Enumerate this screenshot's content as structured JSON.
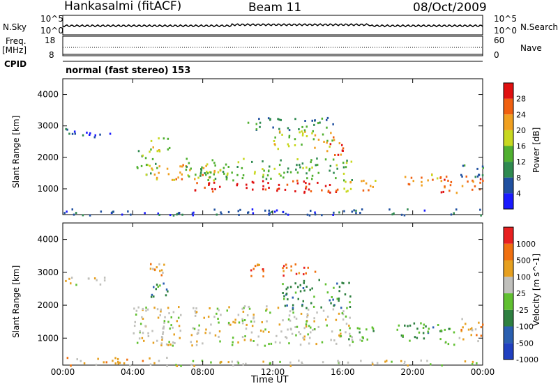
{
  "header": {
    "station": "Hankasalmi (fitACF)",
    "beam": "Beam 11",
    "date": "08/Oct/2009"
  },
  "top_panels": {
    "nsky_label": "N.Sky",
    "nsearch_label": "N.Search",
    "nsky_ticks": [
      "10^5",
      "10^0"
    ],
    "nsearch_ticks": [
      "10^5",
      "10^0"
    ],
    "freq_label_top": "Freq.",
    "freq_label_unit": "[MHz]",
    "freq_ticks": [
      "18",
      "8"
    ],
    "nave_label": "Nave",
    "nave_ticks": [
      "60",
      "0"
    ],
    "cpid_label": "CPID",
    "cpid_text": "normal (fast stereo) 153"
  },
  "colors": {
    "power_scale": [
      "#1a1aff",
      "#2050a0",
      "#2f8a50",
      "#50b030",
      "#c8d820",
      "#f0a020",
      "#f06010",
      "#e01010"
    ],
    "velocity_scale": [
      "#2040c0",
      "#2a5fb0",
      "#2e8040",
      "#60c030",
      "#c0c0bc",
      "#e6a020",
      "#f07010",
      "#e82020"
    ]
  },
  "chart_data": [
    {
      "type": "heatmap",
      "panel": "power",
      "ylabel": "Slant Range [km]",
      "ylim": [
        180,
        4500
      ],
      "yticks": [
        "4000",
        "3000",
        "2000",
        "1000"
      ],
      "xlim": [
        0,
        24
      ],
      "colorbar_label": "Power [dB]",
      "colorbar_ticks": [
        "28",
        "24",
        "20",
        "16",
        "12",
        "8",
        "4"
      ],
      "regions": [
        {
          "t0": 0.0,
          "t1": 2.7,
          "r0": 2650,
          "r1": 2950,
          "level": 1
        },
        {
          "t0": 4.2,
          "t1": 5.4,
          "r0": 1400,
          "r1": 2300,
          "level": 3
        },
        {
          "t0": 4.8,
          "t1": 6.2,
          "r0": 2200,
          "r1": 2700,
          "level": 4
        },
        {
          "t0": 5.0,
          "t1": 9.0,
          "r0": 1300,
          "r1": 1800,
          "level": 5
        },
        {
          "t0": 7.0,
          "t1": 16.5,
          "r0": 1300,
          "r1": 2000,
          "level": 3
        },
        {
          "t0": 7.5,
          "t1": 15.8,
          "r0": 900,
          "r1": 1300,
          "level": 7
        },
        {
          "t0": 12.0,
          "t1": 15.5,
          "r0": 2300,
          "r1": 2900,
          "level": 4
        },
        {
          "t0": 15.0,
          "t1": 16.0,
          "r0": 2100,
          "r1": 2700,
          "level": 6
        },
        {
          "t0": 10.5,
          "t1": 15.5,
          "r0": 2900,
          "r1": 3300,
          "level": 2
        },
        {
          "t0": 16.0,
          "t1": 18.2,
          "r0": 900,
          "r1": 1300,
          "level": 5
        },
        {
          "t0": 19.5,
          "t1": 21.5,
          "r0": 1100,
          "r1": 1500,
          "level": 5
        },
        {
          "t0": 21.5,
          "t1": 24.0,
          "r0": 900,
          "r1": 1500,
          "level": 6
        },
        {
          "t0": 22.5,
          "t1": 24.0,
          "r0": 1400,
          "r1": 1800,
          "level": 2
        },
        {
          "t0": 0.0,
          "t1": 24.0,
          "r0": 180,
          "r1": 380,
          "level": 1
        }
      ]
    },
    {
      "type": "heatmap",
      "panel": "velocity",
      "ylabel": "Slant Range [km]",
      "ylim": [
        180,
        4500
      ],
      "yticks": [
        "4000",
        "3000",
        "2000",
        "1000"
      ],
      "xlim": [
        0,
        24
      ],
      "xticks": [
        "00:00",
        "04:00",
        "08:00",
        "12:00",
        "16:00",
        "20:00",
        "00:00"
      ],
      "xlabel": "Time UT",
      "colorbar_label": "Velocity [m s^-1]",
      "colorbar_ticks": [
        "1000",
        "500",
        "100",
        "25",
        "-25",
        "-100",
        "-500",
        "-1000"
      ],
      "regions": [
        {
          "t0": 0.0,
          "t1": 2.7,
          "r0": 2650,
          "r1": 2900,
          "level": 4
        },
        {
          "t0": 4.0,
          "t1": 16.5,
          "r0": 800,
          "r1": 2000,
          "level": 4
        },
        {
          "t0": 5.0,
          "t1": 6.0,
          "r0": 2200,
          "r1": 2700,
          "level": 2
        },
        {
          "t0": 4.8,
          "t1": 5.8,
          "r0": 2900,
          "r1": 3300,
          "level": 5
        },
        {
          "t0": 10.5,
          "t1": 14.5,
          "r0": 2900,
          "r1": 3300,
          "level": 6
        },
        {
          "t0": 12.5,
          "t1": 16.5,
          "r0": 1900,
          "r1": 2800,
          "level": 2
        },
        {
          "t0": 16.0,
          "t1": 18.0,
          "r0": 900,
          "r1": 1400,
          "level": 3
        },
        {
          "t0": 19.0,
          "t1": 21.5,
          "r0": 900,
          "r1": 1500,
          "level": 2
        },
        {
          "t0": 21.5,
          "t1": 22.5,
          "r0": 800,
          "r1": 1400,
          "level": 3
        },
        {
          "t0": 22.5,
          "t1": 24.0,
          "r0": 900,
          "r1": 1700,
          "level": 5
        },
        {
          "t0": 0.0,
          "t1": 6.0,
          "r0": 180,
          "r1": 450,
          "level": 5
        },
        {
          "t0": 6.0,
          "t1": 24.0,
          "r0": 180,
          "r1": 350,
          "level": 4
        }
      ]
    }
  ]
}
